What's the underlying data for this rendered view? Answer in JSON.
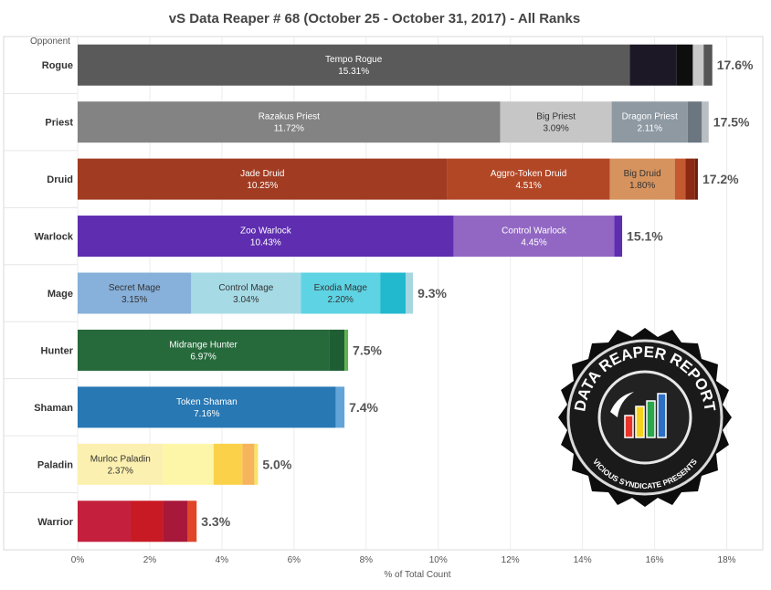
{
  "chart_data": {
    "type": "bar",
    "orientation": "horizontal",
    "stacked": true,
    "title": "vS Data Reaper # 68 (October 25 - October 31, 2017) - All Ranks",
    "xlabel": "% of Total Count",
    "ylabel": "Opponent",
    "xlim": [
      0,
      19
    ],
    "xticks": [
      0,
      2,
      4,
      6,
      8,
      10,
      12,
      14,
      16,
      18
    ],
    "xtick_labels": [
      "0%",
      "2%",
      "4%",
      "6%",
      "8%",
      "10%",
      "12%",
      "14%",
      "16%",
      "18%"
    ],
    "grid": "vertical",
    "categories": [
      "Rogue",
      "Priest",
      "Druid",
      "Warlock",
      "Mage",
      "Hunter",
      "Shaman",
      "Paladin",
      "Warrior"
    ],
    "bars": [
      {
        "category": "Rogue",
        "total_label": "17.6%",
        "segments": [
          {
            "name": "Tempo Rogue",
            "label": "15.31%",
            "value": 15.31,
            "color": "#5a5a5a",
            "text_color": "#ffffff"
          },
          {
            "name": "",
            "label": "",
            "value": 1.3,
            "color": "#1c1825",
            "text_color": "#ffffff"
          },
          {
            "name": "",
            "label": "",
            "value": 0.45,
            "color": "#0e0e0e",
            "text_color": "#ffffff"
          },
          {
            "name": "",
            "label": "",
            "value": 0.3,
            "color": "#c8c8c8",
            "text_color": "#ffffff"
          },
          {
            "name": "",
            "label": "",
            "value": 0.24,
            "color": "#555555",
            "text_color": "#ffffff"
          }
        ]
      },
      {
        "category": "Priest",
        "total_label": "17.5%",
        "segments": [
          {
            "name": "Razakus Priest",
            "label": "11.72%",
            "value": 11.72,
            "color": "#838383",
            "text_color": "#ffffff"
          },
          {
            "name": "Big Priest",
            "label": "3.09%",
            "value": 3.09,
            "color": "#c6c6c6",
            "text_color": "#333333"
          },
          {
            "name": "Dragon Priest",
            "label": "2.11%",
            "value": 2.11,
            "color": "#8e99a2",
            "text_color": "#ffffff"
          },
          {
            "name": "",
            "label": "",
            "value": 0.39,
            "color": "#6b7680",
            "text_color": "#ffffff"
          },
          {
            "name": "",
            "label": "",
            "value": 0.19,
            "color": "#b9bec2",
            "text_color": "#ffffff"
          }
        ]
      },
      {
        "category": "Druid",
        "total_label": "17.2%",
        "segments": [
          {
            "name": "Jade Druid",
            "label": "10.25%",
            "value": 10.25,
            "color": "#a13b21",
            "text_color": "#ffffff"
          },
          {
            "name": "Aggro-Token Druid",
            "label": "4.51%",
            "value": 4.51,
            "color": "#b24726",
            "text_color": "#ffffff"
          },
          {
            "name": "Big Druid",
            "label": "1.80%",
            "value": 1.8,
            "color": "#d7935e",
            "text_color": "#333333"
          },
          {
            "name": "",
            "label": "",
            "value": 0.3,
            "color": "#c4582f",
            "text_color": "#ffffff"
          },
          {
            "name": "",
            "label": "",
            "value": 0.26,
            "color": "#8a2a12",
            "text_color": "#ffffff"
          },
          {
            "name": "",
            "label": "",
            "value": 0.08,
            "color": "#6b1f0d",
            "text_color": "#ffffff"
          }
        ]
      },
      {
        "category": "Warlock",
        "total_label": "15.1%",
        "segments": [
          {
            "name": "Zoo Warlock",
            "label": "10.43%",
            "value": 10.43,
            "color": "#5e2db0",
            "text_color": "#ffffff"
          },
          {
            "name": "Control Warlock",
            "label": "4.45%",
            "value": 4.45,
            "color": "#9267c4",
            "text_color": "#ffffff"
          },
          {
            "name": "",
            "label": "",
            "value": 0.22,
            "color": "#5e2db0",
            "text_color": "#ffffff"
          }
        ]
      },
      {
        "category": "Mage",
        "total_label": "9.3%",
        "segments": [
          {
            "name": "Secret Mage",
            "label": "3.15%",
            "value": 3.15,
            "color": "#87b0da",
            "text_color": "#333333"
          },
          {
            "name": "Control Mage",
            "label": "3.04%",
            "value": 3.04,
            "color": "#a6dbe6",
            "text_color": "#333333"
          },
          {
            "name": "Exodia Mage",
            "label": "2.20%",
            "value": 2.2,
            "color": "#5ed3e3",
            "text_color": "#333333"
          },
          {
            "name": "",
            "label": "",
            "value": 0.71,
            "color": "#22b9cf",
            "text_color": "#ffffff"
          },
          {
            "name": "",
            "label": "",
            "value": 0.2,
            "color": "#a6d7e0",
            "text_color": "#ffffff"
          }
        ]
      },
      {
        "category": "Hunter",
        "total_label": "7.5%",
        "segments": [
          {
            "name": "Midrange Hunter",
            "label": "6.97%",
            "value": 6.97,
            "color": "#266a3b",
            "text_color": "#ffffff"
          },
          {
            "name": "",
            "label": "",
            "value": 0.43,
            "color": "#1f5e33",
            "text_color": "#ffffff"
          },
          {
            "name": "",
            "label": "",
            "value": 0.1,
            "color": "#5fb14f",
            "text_color": "#ffffff"
          }
        ]
      },
      {
        "category": "Shaman",
        "total_label": "7.4%",
        "segments": [
          {
            "name": "Token Shaman",
            "label": "7.16%",
            "value": 7.16,
            "color": "#2878b4",
            "text_color": "#ffffff"
          },
          {
            "name": "",
            "label": "",
            "value": 0.24,
            "color": "#63a4d8",
            "text_color": "#ffffff"
          }
        ]
      },
      {
        "category": "Paladin",
        "total_label": "5.0%",
        "segments": [
          {
            "name": "Murloc Paladin",
            "label": "2.37%",
            "value": 2.37,
            "color": "#fcf0b0",
            "text_color": "#333333"
          },
          {
            "name": "",
            "label": "",
            "value": 1.4,
            "color": "#fdf6a8",
            "text_color": "#333333"
          },
          {
            "name": "",
            "label": "",
            "value": 0.8,
            "color": "#fcd14a",
            "text_color": "#333333"
          },
          {
            "name": "",
            "label": "",
            "value": 0.33,
            "color": "#f6b45c",
            "text_color": "#333333"
          },
          {
            "name": "",
            "label": "",
            "value": 0.1,
            "color": "#f7e36a",
            "text_color": "#333333"
          }
        ]
      },
      {
        "category": "Warrior",
        "total_label": "3.3%",
        "segments": [
          {
            "name": "",
            "label": "",
            "value": 1.47,
            "color": "#c4203e",
            "text_color": "#ffffff"
          },
          {
            "name": "",
            "label": "",
            "value": 0.9,
            "color": "#c81a24",
            "text_color": "#ffffff"
          },
          {
            "name": "",
            "label": "",
            "value": 0.68,
            "color": "#a8183a",
            "text_color": "#ffffff"
          },
          {
            "name": "",
            "label": "",
            "value": 0.25,
            "color": "#e0452a",
            "text_color": "#ffffff"
          }
        ]
      }
    ]
  },
  "logo": {
    "text_main": "DATA REAPER REPORT",
    "text_sub": "VICIOUS SYNDICATE PRESENTS"
  }
}
